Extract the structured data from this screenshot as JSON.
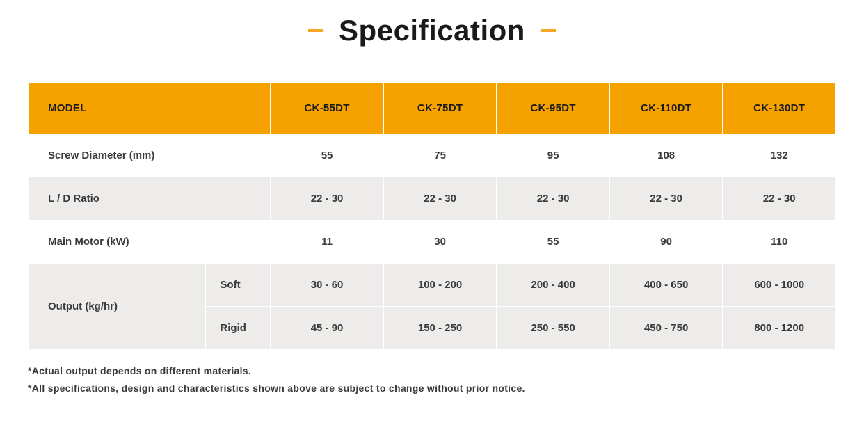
{
  "title": "Specification",
  "title_fontsize": 42,
  "title_color": "#1a1a1a",
  "dash_color": "#f5a623",
  "table": {
    "header_bg": "#f5a100",
    "header_fg": "#1a1a1a",
    "row_even_bg": "#ffffff",
    "row_odd_bg": "#edecea",
    "cell_fg": "#3a3a3a",
    "columns": [
      "MODEL",
      "CK-55DT",
      "CK-75DT",
      "CK-95DT",
      "CK-110DT",
      "CK-130DT"
    ],
    "rows": [
      {
        "label": "Screw Diameter (mm)",
        "values": [
          "55",
          "75",
          "95",
          "108",
          "132"
        ]
      },
      {
        "label": "L / D Ratio",
        "values": [
          "22 - 30",
          "22 - 30",
          "22 - 30",
          "22 - 30",
          "22 - 30"
        ]
      },
      {
        "label": "Main Motor (kW)",
        "values": [
          "11",
          "30",
          "55",
          "90",
          "110"
        ]
      }
    ],
    "grouped": {
      "label": "Output (kg/hr)",
      "subrows": [
        {
          "sublabel": "Soft",
          "values": [
            "30 - 60",
            "100 - 200",
            "200 - 400",
            "400 - 650",
            "600 - 1000"
          ]
        },
        {
          "sublabel": "Rigid",
          "values": [
            "45 - 90",
            "150 - 250",
            "250 - 550",
            "450 - 750",
            "800 - 1200"
          ]
        }
      ]
    }
  },
  "footnotes": [
    "*Actual output depends on different materials.",
    "*All specifications, design and characteristics shown above are subject to change without prior notice."
  ]
}
